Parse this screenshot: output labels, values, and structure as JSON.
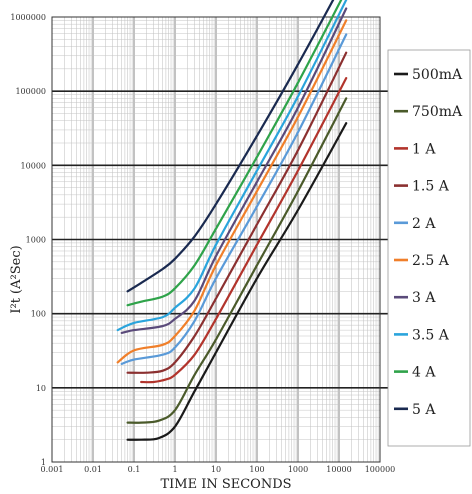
{
  "chart_data": {
    "type": "line",
    "title": "",
    "xlabel": "TIME IN SECONDS",
    "ylabel": "I²t (A²Sec)",
    "xscale": "log",
    "yscale": "log",
    "xlim": [
      0.001,
      100000
    ],
    "ylim": [
      1,
      1000000
    ],
    "grid": true,
    "legend_placement": "right",
    "x_ticks": [
      {
        "value": 0.001,
        "label": "0.001"
      },
      {
        "value": 0.01,
        "label": "0.01"
      },
      {
        "value": 0.1,
        "label": "0.1"
      },
      {
        "value": 1,
        "label": "1"
      },
      {
        "value": 10,
        "label": "10"
      },
      {
        "value": 100,
        "label": "100"
      },
      {
        "value": 1000,
        "label": "1000"
      },
      {
        "value": 10000,
        "label": "10000"
      },
      {
        "value": 100000,
        "label": "100000"
      }
    ],
    "y_ticks": [
      {
        "value": 1,
        "label": "1"
      },
      {
        "value": 10,
        "label": "10"
      },
      {
        "value": 100,
        "label": "100"
      },
      {
        "value": 1000,
        "label": "1000"
      },
      {
        "value": 10000,
        "label": "10000"
      },
      {
        "value": 100000,
        "label": "100000"
      },
      {
        "value": 1000000,
        "label": "1000000"
      }
    ],
    "series": [
      {
        "name": "500mA",
        "color": "#1a1a1a",
        "points": [
          [
            0.07,
            2.0
          ],
          [
            0.15,
            2.0
          ],
          [
            0.4,
            2.1
          ],
          [
            1,
            3
          ],
          [
            3,
            9
          ],
          [
            10,
            30
          ],
          [
            100,
            300
          ],
          [
            1000,
            2500
          ],
          [
            15000,
            37000
          ]
        ]
      },
      {
        "name": "750mA",
        "color": "#4a5a2a",
        "points": [
          [
            0.07,
            3.4
          ],
          [
            0.15,
            3.4
          ],
          [
            0.4,
            3.6
          ],
          [
            1,
            5
          ],
          [
            3,
            15
          ],
          [
            10,
            45
          ],
          [
            100,
            450
          ],
          [
            1000,
            4500
          ],
          [
            15000,
            80000
          ]
        ]
      },
      {
        "name": "1 A",
        "color": "#b2342c",
        "points": [
          [
            0.15,
            12
          ],
          [
            0.3,
            12
          ],
          [
            0.6,
            13
          ],
          [
            1,
            15
          ],
          [
            3,
            28
          ],
          [
            10,
            85
          ],
          [
            100,
            850
          ],
          [
            1000,
            8500
          ],
          [
            15000,
            150000
          ]
        ]
      },
      {
        "name": "1.5 A",
        "color": "#8b3030",
        "points": [
          [
            0.07,
            16
          ],
          [
            0.2,
            16
          ],
          [
            0.5,
            17
          ],
          [
            1,
            22
          ],
          [
            3,
            50
          ],
          [
            10,
            160
          ],
          [
            100,
            1600
          ],
          [
            1000,
            16000
          ],
          [
            15000,
            330000
          ]
        ]
      },
      {
        "name": "2 A",
        "color": "#5a9ad8",
        "points": [
          [
            0.05,
            21
          ],
          [
            0.1,
            24
          ],
          [
            0.5,
            28
          ],
          [
            1,
            35
          ],
          [
            3,
            80
          ],
          [
            10,
            300
          ],
          [
            100,
            2800
          ],
          [
            1000,
            28000
          ],
          [
            15000,
            580000
          ]
        ]
      },
      {
        "name": "2.5 A",
        "color": "#f07f2a",
        "points": [
          [
            0.04,
            22
          ],
          [
            0.1,
            32
          ],
          [
            0.5,
            38
          ],
          [
            1,
            50
          ],
          [
            3,
            110
          ],
          [
            10,
            450
          ],
          [
            100,
            4500
          ],
          [
            1000,
            45000
          ],
          [
            15000,
            900000
          ]
        ]
      },
      {
        "name": "3 A",
        "color": "#5a4a7a",
        "points": [
          [
            0.05,
            55
          ],
          [
            0.1,
            60
          ],
          [
            0.5,
            68
          ],
          [
            1,
            85
          ],
          [
            3,
            150
          ],
          [
            10,
            600
          ],
          [
            100,
            6000
          ],
          [
            1000,
            60000
          ],
          [
            15000,
            1300000
          ]
        ]
      },
      {
        "name": "3.5 A",
        "color": "#2aa4dc",
        "points": [
          [
            0.04,
            60
          ],
          [
            0.1,
            75
          ],
          [
            0.5,
            90
          ],
          [
            1,
            120
          ],
          [
            3,
            220
          ],
          [
            10,
            850
          ],
          [
            100,
            8500
          ],
          [
            1000,
            85000
          ],
          [
            15000,
            1700000
          ]
        ]
      },
      {
        "name": "4 A",
        "color": "#2fa34a",
        "points": [
          [
            0.07,
            130
          ],
          [
            0.15,
            145
          ],
          [
            0.5,
            170
          ],
          [
            1,
            220
          ],
          [
            3,
            450
          ],
          [
            10,
            1400
          ],
          [
            100,
            13000
          ],
          [
            1000,
            130000
          ],
          [
            15000,
            2300000
          ]
        ]
      },
      {
        "name": "5 A",
        "color": "#1a2a50",
        "points": [
          [
            0.07,
            200
          ],
          [
            0.15,
            260
          ],
          [
            0.5,
            400
          ],
          [
            1,
            550
          ],
          [
            3,
            1100
          ],
          [
            10,
            3000
          ],
          [
            100,
            25000
          ],
          [
            1000,
            230000
          ],
          [
            15000,
            3600000
          ]
        ]
      }
    ]
  }
}
